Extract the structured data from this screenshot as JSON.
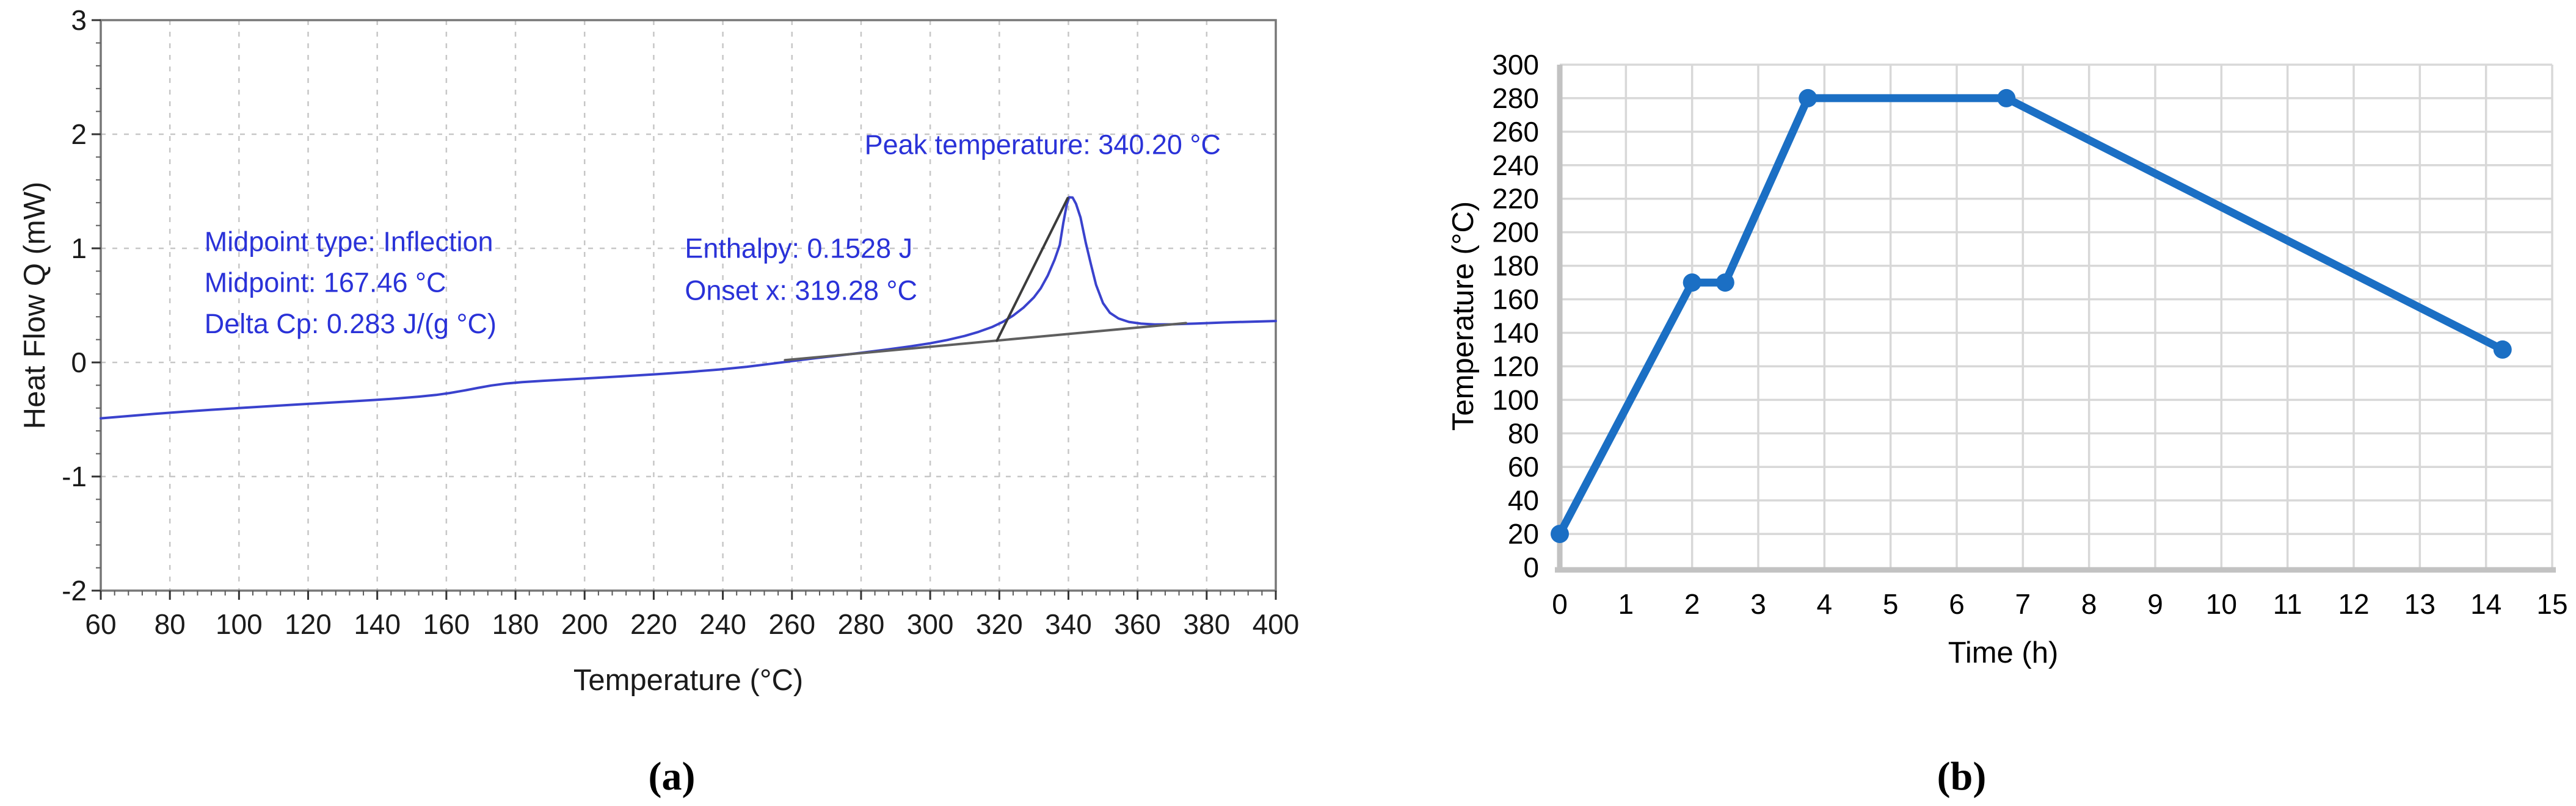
{
  "chart_data": [
    {
      "id": "a",
      "type": "line",
      "caption": "(a)",
      "xlabel": "Temperature (°C)",
      "ylabel": "Heat Flow Q (mW)",
      "xlim": [
        60,
        400
      ],
      "ylim": [
        -2,
        3
      ],
      "xticks": [
        60,
        80,
        100,
        120,
        140,
        160,
        180,
        200,
        220,
        240,
        260,
        280,
        300,
        320,
        340,
        360,
        380,
        400
      ],
      "yticks": [
        -2,
        -1,
        0,
        1,
        2,
        3
      ],
      "grid": "dashed",
      "legend": "none",
      "colors": {
        "curve": "#3a42cd",
        "baseline": "#5f5f5f",
        "tangent": "#3c3c3c",
        "annotation": "#2a32d8"
      },
      "series": [
        {
          "name": "heat-flow-curve",
          "color": "#3a42cd",
          "width": 4,
          "points": [
            [
              60,
              -0.49
            ],
            [
              68,
              -0.47
            ],
            [
              76,
              -0.45
            ],
            [
              84,
              -0.432
            ],
            [
              92,
              -0.415
            ],
            [
              100,
              -0.4
            ],
            [
              108,
              -0.385
            ],
            [
              116,
              -0.37
            ],
            [
              124,
              -0.356
            ],
            [
              132,
              -0.342
            ],
            [
              140,
              -0.328
            ],
            [
              146,
              -0.315
            ],
            [
              152,
              -0.3
            ],
            [
              157,
              -0.285
            ],
            [
              161,
              -0.268
            ],
            [
              165,
              -0.247
            ],
            [
              169,
              -0.224
            ],
            [
              173,
              -0.202
            ],
            [
              177,
              -0.186
            ],
            [
              182,
              -0.172
            ],
            [
              188,
              -0.161
            ],
            [
              195,
              -0.149
            ],
            [
              203,
              -0.136
            ],
            [
              212,
              -0.12
            ],
            [
              221,
              -0.103
            ],
            [
              230,
              -0.084
            ],
            [
              239,
              -0.062
            ],
            [
              247,
              -0.038
            ],
            [
              254,
              -0.012
            ],
            [
              260,
              0.012
            ],
            [
              267,
              0.038
            ],
            [
              274,
              0.062
            ],
            [
              281,
              0.088
            ],
            [
              288,
              0.115
            ],
            [
              294,
              0.14
            ],
            [
              300,
              0.168
            ],
            [
              305,
              0.197
            ],
            [
              310,
              0.232
            ],
            [
              314,
              0.268
            ],
            [
              318,
              0.312
            ],
            [
              321,
              0.355
            ],
            [
              324,
              0.41
            ],
            [
              327,
              0.48
            ],
            [
              330,
              0.57
            ],
            [
              332,
              0.65
            ],
            [
              334,
              0.76
            ],
            [
              336,
              0.9
            ],
            [
              337.5,
              1.03
            ],
            [
              338.5,
              1.22
            ],
            [
              339.5,
              1.38
            ],
            [
              340.2,
              1.447
            ],
            [
              341.2,
              1.445
            ],
            [
              342.2,
              1.39
            ],
            [
              343.5,
              1.27
            ],
            [
              345,
              1.05
            ],
            [
              346.5,
              0.86
            ],
            [
              348,
              0.68
            ],
            [
              350,
              0.52
            ],
            [
              352,
              0.435
            ],
            [
              354.5,
              0.385
            ],
            [
              357.5,
              0.355
            ],
            [
              361,
              0.34
            ],
            [
              365,
              0.333
            ],
            [
              370,
              0.334
            ],
            [
              377,
              0.341
            ],
            [
              385,
              0.35
            ],
            [
              393,
              0.357
            ],
            [
              400,
              0.363
            ]
          ]
        },
        {
          "name": "integration-baseline",
          "color": "#5f5f5f",
          "width": 4,
          "points": [
            [
              258,
              0.02
            ],
            [
              374,
              0.345
            ]
          ]
        },
        {
          "name": "onset-tangent",
          "color": "#3c3c3c",
          "width": 4,
          "points": [
            [
              319.3,
              0.19
            ],
            [
              339.8,
              1.44
            ]
          ]
        }
      ],
      "annotations": [
        {
          "name": "annotation-midpoint-type",
          "text": "Midpoint type: Inflection",
          "x": 90,
          "y": 1.06
        },
        {
          "name": "annotation-midpoint",
          "text": "Midpoint: 167.46 °C",
          "x": 90,
          "y": 0.7
        },
        {
          "name": "annotation-delta-cp",
          "text": "Delta Cp: 0.283 J/(g °C)",
          "x": 90,
          "y": 0.34
        },
        {
          "name": "annotation-enthalpy",
          "text": "Enthalpy: 0.1528 J",
          "x": 229,
          "y": 1.0
        },
        {
          "name": "annotation-onset",
          "text": "Onset x: 319.28 °C",
          "x": 229,
          "y": 0.63
        },
        {
          "name": "annotation-peak-temp",
          "text": "Peak temperature: 340.20 °C",
          "x": 281,
          "y": 1.91
        }
      ]
    },
    {
      "id": "b",
      "type": "line",
      "caption": "(b)",
      "xlabel": "Time (h)",
      "ylabel": "Temperature (°C)",
      "xlim": [
        0,
        15
      ],
      "ylim": [
        0,
        300
      ],
      "xticks": [
        0,
        1,
        2,
        3,
        4,
        5,
        6,
        7,
        8,
        9,
        10,
        11,
        12,
        13,
        14,
        15
      ],
      "yticks": [
        0,
        20,
        40,
        60,
        80,
        100,
        120,
        140,
        160,
        180,
        200,
        220,
        240,
        260,
        280,
        300
      ],
      "grid": "solid",
      "legend": "none",
      "colors": {
        "line": "#1b6fc4",
        "grid": "#d8d8d8",
        "axis": "#c2c2c2"
      },
      "series": [
        {
          "name": "temperature-program",
          "color": "#1b6fc4",
          "width": 13,
          "marker_radius": 15,
          "points": [
            [
              0,
              20
            ],
            [
              2,
              170
            ],
            [
              2.5,
              170
            ],
            [
              3.75,
              280
            ],
            [
              6.75,
              280
            ],
            [
              14.25,
              130
            ]
          ]
        }
      ]
    }
  ]
}
